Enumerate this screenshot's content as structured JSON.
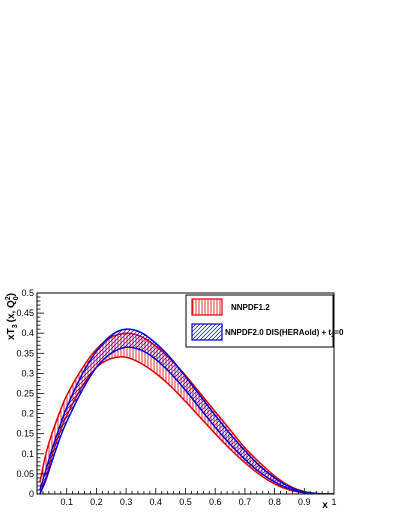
{
  "chart_data": {
    "type": "area",
    "xlabel": "x",
    "ylabel": "xT",
    "ylabel_sub": "3",
    "ylabel_args": "(x, Q",
    "ylabel_sup": "2",
    "ylabel_sub2": "0",
    "ylabel_close": ")",
    "xlim": [
      0,
      1
    ],
    "ylim": [
      0,
      0.5
    ],
    "x_ticks": [
      "0.1",
      "0.2",
      "0.3",
      "0.4",
      "0.5",
      "0.6",
      "0.7",
      "0.8",
      "0.9",
      "1"
    ],
    "y_ticks": [
      "0",
      "0.05",
      "0.1",
      "0.15",
      "0.2",
      "0.25",
      "0.3",
      "0.35",
      "0.4",
      "0.45",
      "0.5"
    ],
    "grid": false,
    "legend_position": "top-right",
    "series": [
      {
        "name": "NNPDF1.2",
        "color": "#e00000",
        "hatch": "vertical",
        "x": [
          0.01,
          0.03,
          0.05,
          0.08,
          0.1,
          0.15,
          0.2,
          0.25,
          0.3,
          0.35,
          0.4,
          0.45,
          0.5,
          0.55,
          0.6,
          0.65,
          0.7,
          0.75,
          0.8,
          0.85,
          0.9,
          0.95,
          1.0
        ],
        "upper": [
          0.03,
          0.1,
          0.15,
          0.21,
          0.245,
          0.31,
          0.36,
          0.39,
          0.4,
          0.392,
          0.368,
          0.335,
          0.295,
          0.25,
          0.205,
          0.16,
          0.115,
          0.078,
          0.045,
          0.02,
          0.006,
          0.001,
          0.0
        ],
        "lower": [
          0.0,
          0.04,
          0.095,
          0.16,
          0.195,
          0.265,
          0.315,
          0.337,
          0.34,
          0.325,
          0.3,
          0.268,
          0.23,
          0.19,
          0.15,
          0.112,
          0.078,
          0.048,
          0.025,
          0.01,
          0.003,
          0.0,
          0.0
        ]
      },
      {
        "name_prefix": "NNPDF2.0 DIS(HERAold) + t",
        "name_sub": "3",
        "name_suffix": "=0",
        "color": "#0000e0",
        "hatch": "diagonal",
        "x": [
          0.01,
          0.03,
          0.05,
          0.08,
          0.1,
          0.15,
          0.2,
          0.25,
          0.3,
          0.35,
          0.4,
          0.45,
          0.5,
          0.55,
          0.6,
          0.65,
          0.7,
          0.75,
          0.8,
          0.85,
          0.9,
          0.95,
          1.0
        ],
        "upper": [
          0.01,
          0.06,
          0.11,
          0.175,
          0.215,
          0.295,
          0.355,
          0.395,
          0.41,
          0.402,
          0.375,
          0.338,
          0.292,
          0.244,
          0.196,
          0.15,
          0.108,
          0.07,
          0.04,
          0.018,
          0.005,
          0.001,
          0.0
        ],
        "lower": [
          0.0,
          0.035,
          0.08,
          0.145,
          0.18,
          0.255,
          0.315,
          0.35,
          0.365,
          0.358,
          0.335,
          0.3,
          0.258,
          0.212,
          0.166,
          0.124,
          0.086,
          0.054,
          0.03,
          0.013,
          0.004,
          0.0,
          0.0
        ]
      }
    ]
  },
  "colors": {
    "nnpdf12": "#e00000",
    "nnpdf20": "#0000e0",
    "axis": "#000000"
  }
}
